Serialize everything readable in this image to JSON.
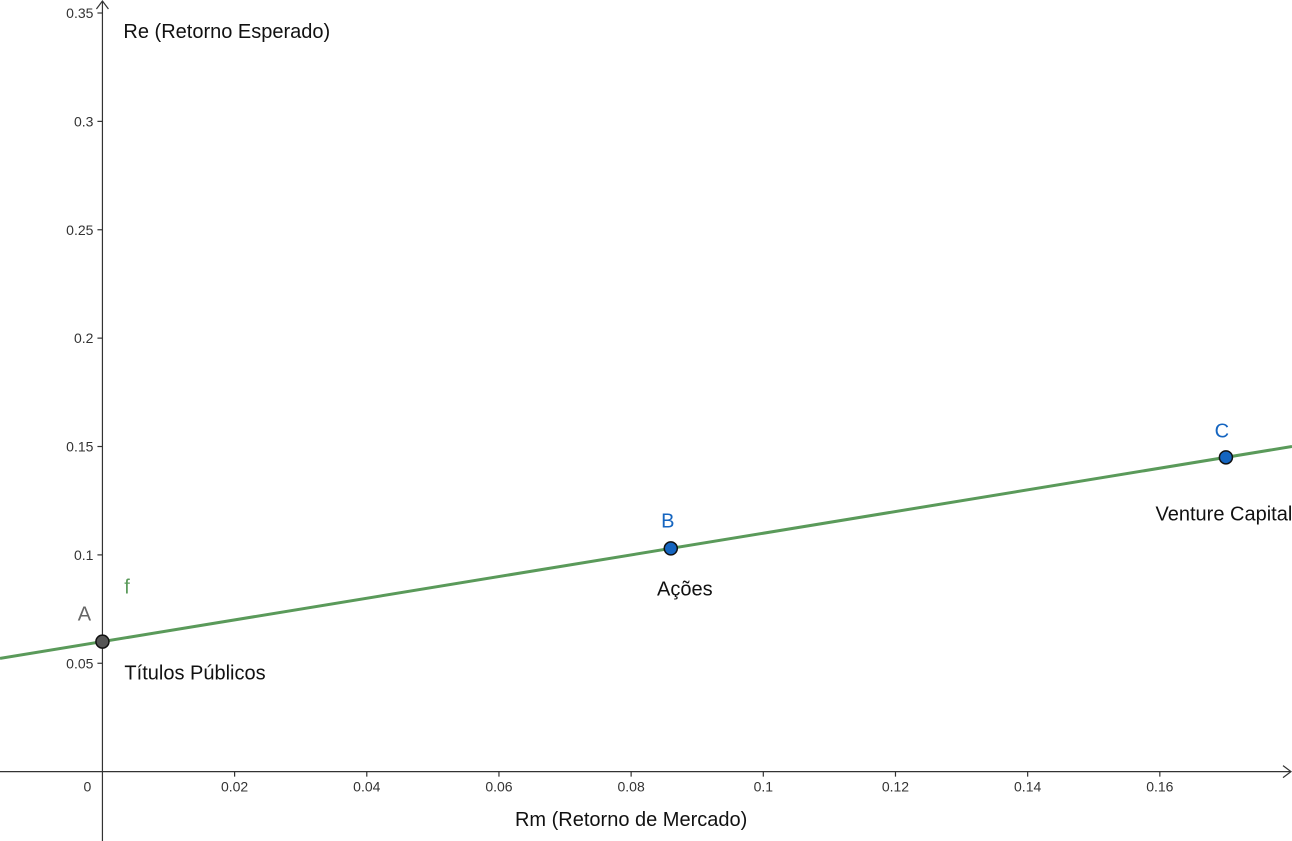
{
  "chart_data": {
    "type": "line",
    "xlabel": "Rm (Retorno de Mercado)",
    "ylabel": "Re (Retorno Esperado)",
    "xlim": [
      -0.0155,
      0.18
    ],
    "ylim": [
      -0.032,
      0.356
    ],
    "grid": false,
    "x_ticks": [
      {
        "value": 0.02,
        "label": "0.02"
      },
      {
        "value": 0.04,
        "label": "0.04"
      },
      {
        "value": 0.06,
        "label": "0.06"
      },
      {
        "value": 0.08,
        "label": "0.08"
      },
      {
        "value": 0.1,
        "label": "0.1"
      },
      {
        "value": 0.12,
        "label": "0.12"
      },
      {
        "value": 0.14,
        "label": "0.14"
      },
      {
        "value": 0.16,
        "label": "0.16"
      }
    ],
    "y_ticks": [
      {
        "value": 0.05,
        "label": "0.05"
      },
      {
        "value": 0.1,
        "label": "0.1"
      },
      {
        "value": 0.15,
        "label": "0.15"
      },
      {
        "value": 0.2,
        "label": "0.2"
      },
      {
        "value": 0.25,
        "label": "0.25"
      },
      {
        "value": 0.3,
        "label": "0.3"
      },
      {
        "value": 0.35,
        "label": "0.35"
      }
    ],
    "origin_label": "0",
    "series": [
      {
        "name": "f",
        "color": "#5a9a5a",
        "intercept": 0.06,
        "slope": 0.5
      }
    ],
    "points": [
      {
        "name": "A",
        "x": 0,
        "y": 0.06,
        "fill": "#555555",
        "label_color": "#666666",
        "annotation": "Títulos Públicos"
      },
      {
        "name": "B",
        "x": 0.086,
        "y": 0.103,
        "fill": "#1565c0",
        "label_color": "#1565c0",
        "annotation": "Ações"
      },
      {
        "name": "C",
        "x": 0.17,
        "y": 0.145,
        "fill": "#1565c0",
        "label_color": "#1565c0",
        "annotation": "Venture Capital"
      }
    ]
  }
}
